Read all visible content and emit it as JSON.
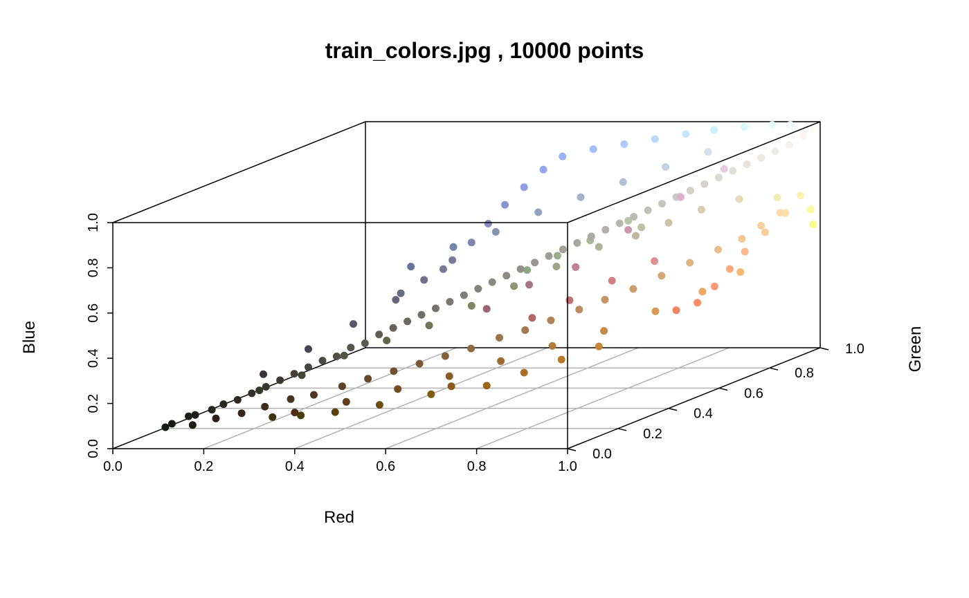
{
  "colors": {
    "box": "#000000",
    "grid": "#b3b3b3",
    "background": "#ffffff"
  },
  "chart_data": {
    "type": "scatter",
    "subtype": "3d-scatter",
    "title": "train_colors.jpg , 10000 points",
    "xlabel": "Red",
    "ylabel": "Green",
    "zlabel": "Blue",
    "xlim": [
      0,
      1
    ],
    "ylim": [
      0,
      1
    ],
    "zlim": [
      0,
      1
    ],
    "x_ticks": [
      "0.0",
      "0.2",
      "0.4",
      "0.6",
      "0.8",
      "1.0"
    ],
    "y_ticks": [
      "0.0",
      "0.2",
      "0.4",
      "0.6",
      "0.8",
      "1.0"
    ],
    "z_ticks": [
      "0.0",
      "0.2",
      "0.4",
      "0.6",
      "0.8",
      "1.0"
    ],
    "grid": true,
    "grid_plane": "bottom",
    "point_color": "rgb of each point",
    "n_points": 10000,
    "points": [
      [
        0.06,
        0.1,
        0.05
      ],
      [
        0.08,
        0.09,
        0.07
      ],
      [
        0.1,
        0.12,
        0.09
      ],
      [
        0.12,
        0.11,
        0.1
      ],
      [
        0.14,
        0.14,
        0.11
      ],
      [
        0.16,
        0.15,
        0.13
      ],
      [
        0.18,
        0.17,
        0.14
      ],
      [
        0.2,
        0.19,
        0.16
      ],
      [
        0.22,
        0.21,
        0.18
      ],
      [
        0.24,
        0.23,
        0.2
      ],
      [
        0.26,
        0.25,
        0.22
      ],
      [
        0.28,
        0.27,
        0.24
      ],
      [
        0.3,
        0.29,
        0.26
      ],
      [
        0.32,
        0.31,
        0.27
      ],
      [
        0.34,
        0.33,
        0.3
      ],
      [
        0.36,
        0.35,
        0.31
      ],
      [
        0.38,
        0.37,
        0.34
      ],
      [
        0.4,
        0.39,
        0.36
      ],
      [
        0.42,
        0.41,
        0.38
      ],
      [
        0.44,
        0.43,
        0.4
      ],
      [
        0.46,
        0.45,
        0.42
      ],
      [
        0.48,
        0.47,
        0.44
      ],
      [
        0.5,
        0.49,
        0.46
      ],
      [
        0.52,
        0.51,
        0.48
      ],
      [
        0.54,
        0.53,
        0.5
      ],
      [
        0.56,
        0.55,
        0.52
      ],
      [
        0.58,
        0.57,
        0.54
      ],
      [
        0.6,
        0.59,
        0.56
      ],
      [
        0.62,
        0.61,
        0.58
      ],
      [
        0.64,
        0.63,
        0.6
      ],
      [
        0.66,
        0.65,
        0.62
      ],
      [
        0.68,
        0.67,
        0.64
      ],
      [
        0.7,
        0.69,
        0.66
      ],
      [
        0.72,
        0.71,
        0.68
      ],
      [
        0.74,
        0.73,
        0.7
      ],
      [
        0.76,
        0.75,
        0.72
      ],
      [
        0.78,
        0.77,
        0.74
      ],
      [
        0.8,
        0.79,
        0.76
      ],
      [
        0.82,
        0.81,
        0.78
      ],
      [
        0.84,
        0.83,
        0.8
      ],
      [
        0.86,
        0.85,
        0.82
      ],
      [
        0.88,
        0.87,
        0.84
      ],
      [
        0.9,
        0.89,
        0.86
      ],
      [
        0.92,
        0.91,
        0.88
      ],
      [
        0.94,
        0.93,
        0.9
      ],
      [
        0.96,
        0.95,
        0.92
      ],
      [
        0.98,
        0.97,
        0.95
      ],
      [
        0.99,
        0.99,
        0.97
      ],
      [
        0.12,
        0.1,
        0.06
      ],
      [
        0.16,
        0.12,
        0.08
      ],
      [
        0.2,
        0.15,
        0.09
      ],
      [
        0.24,
        0.17,
        0.11
      ],
      [
        0.28,
        0.2,
        0.13
      ],
      [
        0.32,
        0.22,
        0.14
      ],
      [
        0.36,
        0.26,
        0.16
      ],
      [
        0.4,
        0.29,
        0.18
      ],
      [
        0.44,
        0.32,
        0.2
      ],
      [
        0.48,
        0.35,
        0.22
      ],
      [
        0.52,
        0.38,
        0.24
      ],
      [
        0.56,
        0.41,
        0.26
      ],
      [
        0.6,
        0.45,
        0.29
      ],
      [
        0.64,
        0.48,
        0.31
      ],
      [
        0.68,
        0.51,
        0.34
      ],
      [
        0.72,
        0.55,
        0.37
      ],
      [
        0.76,
        0.58,
        0.4
      ],
      [
        0.8,
        0.62,
        0.43
      ],
      [
        0.84,
        0.66,
        0.47
      ],
      [
        0.88,
        0.7,
        0.51
      ],
      [
        0.92,
        0.74,
        0.55
      ],
      [
        0.95,
        0.78,
        0.58
      ],
      [
        0.97,
        0.82,
        0.62
      ],
      [
        0.99,
        0.86,
        0.66
      ],
      [
        0.3,
        0.18,
        0.08
      ],
      [
        0.38,
        0.24,
        0.1
      ],
      [
        0.46,
        0.3,
        0.13
      ],
      [
        0.54,
        0.36,
        0.16
      ],
      [
        0.62,
        0.42,
        0.2
      ],
      [
        0.7,
        0.48,
        0.24
      ],
      [
        0.78,
        0.54,
        0.28
      ],
      [
        0.86,
        0.6,
        0.34
      ],
      [
        0.93,
        0.66,
        0.4
      ],
      [
        0.98,
        0.72,
        0.46
      ],
      [
        0.99,
        0.6,
        0.45
      ],
      [
        0.98,
        0.55,
        0.4
      ],
      [
        0.95,
        0.52,
        0.38
      ],
      [
        0.99,
        0.66,
        0.5
      ],
      [
        0.99,
        0.72,
        0.55
      ],
      [
        0.99,
        0.8,
        0.6
      ],
      [
        0.99,
        0.88,
        0.65
      ],
      [
        0.99,
        0.94,
        0.7
      ],
      [
        0.99,
        0.98,
        0.62
      ],
      [
        0.99,
        0.99,
        0.55
      ],
      [
        0.95,
        0.92,
        0.7
      ],
      [
        0.9,
        0.86,
        0.72
      ],
      [
        0.85,
        0.8,
        0.7
      ],
      [
        0.8,
        0.76,
        0.66
      ],
      [
        0.75,
        0.72,
        0.62
      ],
      [
        0.2,
        0.22,
        0.16
      ],
      [
        0.26,
        0.28,
        0.2
      ],
      [
        0.32,
        0.34,
        0.26
      ],
      [
        0.38,
        0.4,
        0.3
      ],
      [
        0.44,
        0.46,
        0.34
      ],
      [
        0.5,
        0.52,
        0.4
      ],
      [
        0.56,
        0.58,
        0.46
      ],
      [
        0.62,
        0.64,
        0.52
      ],
      [
        0.68,
        0.7,
        0.58
      ],
      [
        0.74,
        0.76,
        0.64
      ],
      [
        0.6,
        0.68,
        0.55
      ],
      [
        0.55,
        0.65,
        0.5
      ],
      [
        0.65,
        0.72,
        0.6
      ],
      [
        0.7,
        0.78,
        0.66
      ],
      [
        0.78,
        0.84,
        0.74
      ],
      [
        0.22,
        0.2,
        0.24
      ],
      [
        0.28,
        0.27,
        0.32
      ],
      [
        0.34,
        0.34,
        0.4
      ],
      [
        0.4,
        0.4,
        0.48
      ],
      [
        0.44,
        0.44,
        0.55
      ],
      [
        0.48,
        0.48,
        0.62
      ],
      [
        0.5,
        0.52,
        0.68
      ],
      [
        0.52,
        0.55,
        0.75
      ],
      [
        0.54,
        0.58,
        0.82
      ],
      [
        0.56,
        0.62,
        0.88
      ],
      [
        0.58,
        0.66,
        0.94
      ],
      [
        0.6,
        0.7,
        0.98
      ],
      [
        0.64,
        0.75,
        0.99
      ],
      [
        0.68,
        0.8,
        0.99
      ],
      [
        0.72,
        0.85,
        0.99
      ],
      [
        0.76,
        0.9,
        0.99
      ],
      [
        0.8,
        0.94,
        0.99
      ],
      [
        0.85,
        0.97,
        0.99
      ],
      [
        0.9,
        0.99,
        0.99
      ],
      [
        0.94,
        0.99,
        0.99
      ],
      [
        0.4,
        0.46,
        0.6
      ],
      [
        0.46,
        0.52,
        0.66
      ],
      [
        0.52,
        0.58,
        0.7
      ],
      [
        0.58,
        0.64,
        0.76
      ],
      [
        0.64,
        0.7,
        0.8
      ],
      [
        0.7,
        0.76,
        0.84
      ],
      [
        0.76,
        0.82,
        0.88
      ],
      [
        0.82,
        0.88,
        0.92
      ],
      [
        0.4,
        0.42,
        0.5
      ],
      [
        0.46,
        0.48,
        0.58
      ],
      [
        0.7,
        0.4,
        0.4
      ],
      [
        0.76,
        0.44,
        0.46
      ],
      [
        0.82,
        0.5,
        0.52
      ],
      [
        0.88,
        0.56,
        0.58
      ],
      [
        0.74,
        0.5,
        0.58
      ],
      [
        0.8,
        0.6,
        0.7
      ],
      [
        0.86,
        0.7,
        0.8
      ],
      [
        0.9,
        0.8,
        0.88
      ],
      [
        0.66,
        0.46,
        0.52
      ],
      [
        0.6,
        0.4,
        0.44
      ],
      [
        0.35,
        0.25,
        0.05
      ],
      [
        0.42,
        0.3,
        0.06
      ],
      [
        0.5,
        0.36,
        0.08
      ],
      [
        0.28,
        0.24,
        0.04
      ],
      [
        0.24,
        0.2,
        0.05
      ],
      [
        0.6,
        0.4,
        0.1
      ],
      [
        0.66,
        0.44,
        0.14
      ],
      [
        0.72,
        0.48,
        0.18
      ],
      [
        0.78,
        0.52,
        0.22
      ],
      [
        0.55,
        0.35,
        0.12
      ]
    ]
  }
}
